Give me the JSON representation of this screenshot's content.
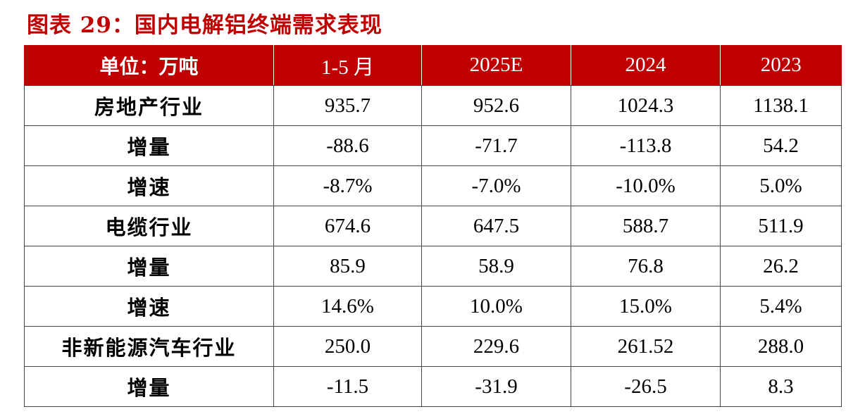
{
  "caption": "图表 29：国内电解铝终端需求表现",
  "colors": {
    "header_bg": "#c00000",
    "caption": "#c00000",
    "negative": "#1f9e3c",
    "positive": "#ff0000"
  },
  "table": {
    "headers": [
      "单位：万吨",
      "1-5 月",
      "2025E",
      "2024",
      "2023"
    ],
    "rows": [
      {
        "label": "房地产行业",
        "values": [
          "935.7",
          "952.6",
          "1024.3",
          "1138.1"
        ],
        "tones": [
          "plain",
          "plain",
          "plain",
          "plain"
        ]
      },
      {
        "label": "增量",
        "values": [
          "-88.6",
          "-71.7",
          "-113.8",
          "54.2"
        ],
        "tones": [
          "neg",
          "neg",
          "neg",
          "pos"
        ]
      },
      {
        "label": "增速",
        "values": [
          "-8.7%",
          "-7.0%",
          "-10.0%",
          "5.0%"
        ],
        "tones": [
          "neg",
          "neg",
          "neg",
          "pos"
        ]
      },
      {
        "label": "电缆行业",
        "values": [
          "674.6",
          "647.5",
          "588.7",
          "511.9"
        ],
        "tones": [
          "plain",
          "plain",
          "plain",
          "plain"
        ]
      },
      {
        "label": "增量",
        "values": [
          "85.9",
          "58.9",
          "76.8",
          "26.2"
        ],
        "tones": [
          "pos",
          "pos",
          "pos",
          "pos"
        ]
      },
      {
        "label": "增速",
        "values": [
          "14.6%",
          "10.0%",
          "15.0%",
          "5.4%"
        ],
        "tones": [
          "pos",
          "pos",
          "pos",
          "pos"
        ]
      },
      {
        "label": "非新能源汽车行业",
        "values": [
          "250.0",
          "229.6",
          "261.52",
          "288.0"
        ],
        "tones": [
          "plain",
          "plain",
          "plain",
          "plain"
        ]
      },
      {
        "label": "增量",
        "values": [
          "-11.5",
          "-31.9",
          "-26.5",
          "8.3"
        ],
        "tones": [
          "neg",
          "neg",
          "neg",
          "pos"
        ]
      }
    ]
  }
}
